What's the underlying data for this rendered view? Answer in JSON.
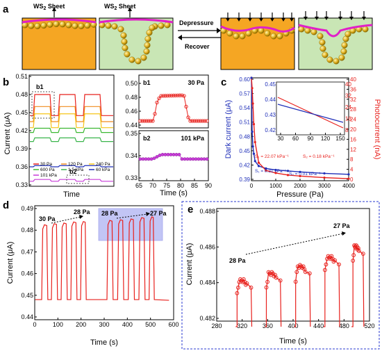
{
  "panels": {
    "a": {
      "label": "a",
      "ws2_left": "WS",
      "ws2_sub": "2",
      "sheet_word": " Sheet",
      "depressure": "Depressure",
      "recover": "Recover"
    },
    "b": {
      "label": "b",
      "b1_box_label": "b1",
      "b2_box_label": "b2",
      "ylabel": "Current (μA)",
      "xlabel": "Time",
      "yticks": [
        "0.51",
        "0.48",
        "0.45",
        "0.42",
        "0.39",
        "0.36",
        "0.33"
      ],
      "legend": [
        {
          "name": "30 Pa",
          "color": "#e8201c"
        },
        {
          "name": "120 Pa",
          "color": "#f08c1e"
        },
        {
          "name": "240 Pa",
          "color": "#f5c518"
        },
        {
          "name": "600 Pa",
          "color": "#3cb832"
        },
        {
          "name": "1.5 kPa",
          "color": "#39b54a"
        },
        {
          "name": "60 kPa",
          "color": "#1f2fb8"
        },
        {
          "name": "101 kPa",
          "color": "#c83cd8"
        }
      ]
    },
    "b1": {
      "label": "b1",
      "pressure": "30 Pa",
      "yticks": [
        "0.50",
        "0.48",
        "0.46",
        "0.44"
      ]
    },
    "b2": {
      "label": "b2",
      "pressure": "101 kPa",
      "yticks": [
        "0.35",
        "0.34",
        "0.33"
      ],
      "xticks": [
        "65",
        "70",
        "75",
        "80",
        "85",
        "90"
      ],
      "xlabel": "Time (s)"
    },
    "c": {
      "label": "c",
      "ylabel_left": "Dark current (μA)",
      "ylabel_right": "Photocurrent (nA)",
      "xlabel": "Pressure (Pa)",
      "yticks_left": [
        "0.60",
        "0.57",
        "0.54",
        "0.51",
        "0.48",
        "0.45",
        "0.42",
        "0.39"
      ],
      "yticks_right": [
        "40",
        "36",
        "32",
        "28",
        "24",
        "20",
        "16",
        "12",
        "8",
        "4",
        "0"
      ],
      "xticks": [
        "0",
        "1000",
        "2000",
        "3000",
        "4000"
      ],
      "s1_dark": "S₁ = 0.31 kPa⁻¹",
      "s2_dark": "S₂ = 0.01 kPa⁻¹",
      "s1_photo": "S₁ = 22.07 kPa⁻¹",
      "s2_photo": "S₂ = 0.18 kPa⁻¹",
      "inset_yticks_left": [
        "0.45",
        "0.44",
        "0.43",
        "0.42"
      ],
      "inset_yticks_right": [
        "40",
        "32",
        "24",
        "16",
        "8"
      ],
      "inset_xticks": [
        "30",
        "60",
        "90",
        "120",
        "150"
      ],
      "colors": {
        "dark": "#1f2fb8",
        "photo": "#e8201c"
      }
    },
    "d": {
      "label": "d",
      "ylabel": "Current (μA)",
      "xlabel": "Time (s)",
      "yticks": [
        "0.49",
        "0.48",
        "0.47",
        "0.46",
        "0.45",
        "0.44"
      ],
      "xticks": [
        "0",
        "100",
        "200",
        "300",
        "400",
        "500",
        "600"
      ],
      "ann_start": "30 Pa",
      "ann_mid": "28 Pa",
      "ann_mid2": "28 Pa",
      "ann_end": "27 Pa",
      "color": "#e8201c"
    },
    "e": {
      "label": "e",
      "ylabel": "Current (μA)",
      "xlabel": "Time (s)",
      "yticks": [
        "0.488",
        "0.486",
        "0.484",
        "0.482"
      ],
      "xticks": [
        "280",
        "320",
        "360",
        "400",
        "440",
        "480",
        "520"
      ],
      "ann_start": "28 Pa",
      "ann_end": "27 Pa",
      "color": "#e8201c"
    }
  },
  "chart_data": [
    {
      "type": "line",
      "panel": "b",
      "xlabel": "Time",
      "ylabel": "Current (μA)",
      "ylim": [
        0.33,
        0.51
      ],
      "series": [
        {
          "name": "30 Pa",
          "base": 0.445,
          "peak": 0.48
        },
        {
          "name": "120 Pa",
          "base": 0.435,
          "peak": 0.46
        },
        {
          "name": "240 Pa",
          "base": 0.425,
          "peak": 0.448
        },
        {
          "name": "600 Pa",
          "base": 0.417,
          "peak": 0.424
        },
        {
          "name": "1.5 kPa",
          "base": 0.402,
          "peak": 0.408
        },
        {
          "name": "60 kPa",
          "base": 0.36,
          "peak": 0.362
        },
        {
          "name": "101 kPa",
          "base": 0.336,
          "peak": 0.339
        }
      ]
    },
    {
      "type": "scatter",
      "panel": "b1",
      "title": "30 Pa",
      "ylim": [
        0.44,
        0.5
      ],
      "base": 0.446,
      "peak": 0.482
    },
    {
      "type": "scatter",
      "panel": "b2",
      "title": "101 kPa",
      "xlabel": "Time (s)",
      "xlim": [
        65,
        90
      ],
      "ylim": [
        0.33,
        0.35
      ],
      "base": 0.3385,
      "peak": 0.3405
    },
    {
      "type": "line",
      "panel": "c",
      "xlabel": "Pressure (Pa)",
      "ylabel": "Dark current (μA)",
      "y2label": "Photocurrent (nA)",
      "xlim": [
        0,
        4000
      ],
      "ylim": [
        0.39,
        0.6
      ],
      "y2lim": [
        0,
        40
      ],
      "series": [
        {
          "x": [
            0,
            30,
            60,
            100,
            150,
            300,
            600,
            1000,
            1500,
            2000,
            3000,
            4000
          ],
          "y": [
            0.6,
            0.49,
            0.46,
            0.445,
            0.43,
            0.42,
            0.415,
            0.412,
            0.41,
            0.408,
            0.405,
            0.403
          ]
        },
        {
          "x": [
            0,
            30,
            60,
            100,
            150,
            300,
            600,
            1000,
            1500,
            2000,
            3000,
            4000
          ],
          "y": [
            40,
            36,
            30,
            22,
            15,
            7,
            4,
            3,
            2.2,
            1.8,
            1.2,
            0.8
          ]
        }
      ]
    },
    {
      "type": "line",
      "panel": "d",
      "xlabel": "Time (s)",
      "ylabel": "Current (μA)",
      "xlim": [
        0,
        600
      ],
      "ylim": [
        0.44,
        0.49
      ],
      "pulses": [
        {
          "start": 30,
          "end": 52,
          "peak": 0.4825
        },
        {
          "start": 72,
          "end": 94,
          "peak": 0.483
        },
        {
          "start": 114,
          "end": 136,
          "peak": 0.4833
        },
        {
          "start": 156,
          "end": 178,
          "peak": 0.4838
        },
        {
          "start": 198,
          "end": 218,
          "peak": 0.484
        },
        {
          "start": 312,
          "end": 334,
          "peak": 0.4845
        },
        {
          "start": 358,
          "end": 380,
          "peak": 0.4848
        },
        {
          "start": 404,
          "end": 426,
          "peak": 0.4852
        },
        {
          "start": 450,
          "end": 472,
          "peak": 0.4858
        },
        {
          "start": 494,
          "end": 512,
          "peak": 0.4862
        }
      ],
      "base": 0.448
    },
    {
      "type": "line",
      "panel": "e",
      "xlabel": "Time (s)",
      "ylabel": "Current (μA)",
      "xlim": [
        280,
        520
      ],
      "ylim": [
        0.482,
        0.488
      ],
      "pulses": [
        {
          "start": 312,
          "end": 334,
          "peak": 0.4845
        },
        {
          "start": 358,
          "end": 380,
          "peak": 0.4849
        },
        {
          "start": 404,
          "end": 426,
          "peak": 0.4853
        },
        {
          "start": 450,
          "end": 472,
          "peak": 0.4858
        },
        {
          "start": 494,
          "end": 510,
          "peak": 0.4864
        }
      ]
    }
  ]
}
